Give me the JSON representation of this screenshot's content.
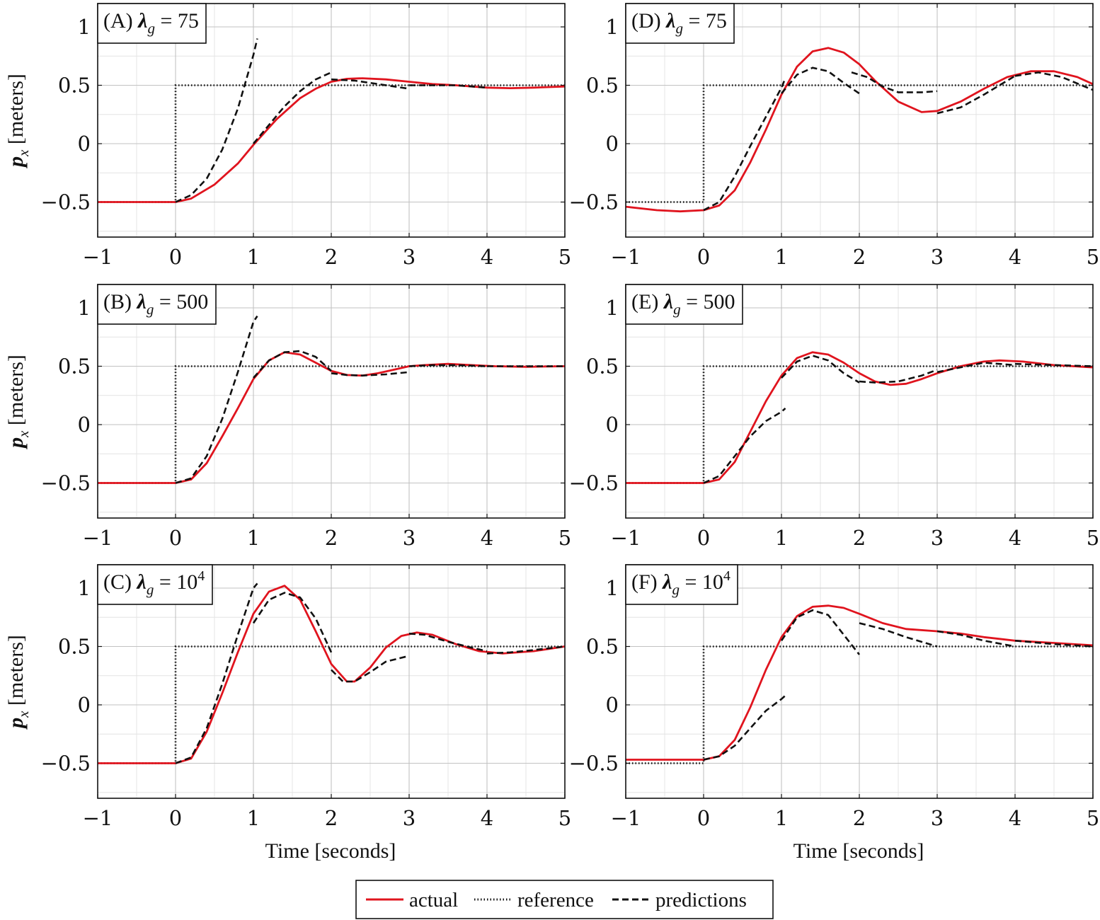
{
  "chart_data": {
    "type": "line",
    "xlabel": "Time [seconds]",
    "ylabel": "p_x [meters]",
    "ylabel_main": "p",
    "ylabel_sub": "x",
    "ylabel_unit": " [meters]",
    "xlim": [
      -1,
      5
    ],
    "ylim": [
      -0.8,
      1.2
    ],
    "x_ticks": [
      -1,
      0,
      1,
      2,
      3,
      4,
      5
    ],
    "x_tick_labels": [
      "−1",
      "0",
      "1",
      "2",
      "3",
      "4",
      "5"
    ],
    "y_ticks": [
      -0.5,
      0,
      0.5,
      1
    ],
    "y_tick_labels": [
      "−0.5",
      "0",
      "0.5",
      "1"
    ],
    "grid": true,
    "legend_position": "bottom-center",
    "legend": [
      {
        "name": "actual",
        "style": "solid",
        "color": "#e0141e"
      },
      {
        "name": "reference",
        "style": "dotted",
        "color": "#111111"
      },
      {
        "name": "predictions",
        "style": "dashed",
        "color": "#111111"
      }
    ],
    "reference": {
      "x": [
        -1,
        0,
        0,
        5
      ],
      "y": [
        -0.5,
        -0.5,
        0.5,
        0.5
      ]
    },
    "panels": [
      {
        "label_prefix": "(A) ",
        "lambda_value": "= 75",
        "lambda_exp": "",
        "actual": {
          "x": [
            -1,
            0,
            0.2,
            0.5,
            0.8,
            1.0,
            1.3,
            1.6,
            1.8,
            2.0,
            2.2,
            2.4,
            2.7,
            3.0,
            3.3,
            3.6,
            4.0,
            4.3,
            4.6,
            5.0
          ],
          "y": [
            -0.5,
            -0.5,
            -0.47,
            -0.35,
            -0.17,
            -0.01,
            0.21,
            0.39,
            0.47,
            0.53,
            0.555,
            0.56,
            0.55,
            0.53,
            0.51,
            0.5,
            0.48,
            0.475,
            0.48,
            0.49
          ]
        },
        "predictions": [
          {
            "x": [
              0,
              0.2,
              0.4,
              0.6,
              0.8,
              1.0,
              1.05
            ],
            "y": [
              -0.5,
              -0.44,
              -0.3,
              -0.05,
              0.3,
              0.76,
              0.9
            ]
          },
          {
            "x": [
              1.0,
              1.2,
              1.4,
              1.6,
              1.8,
              2.0
            ],
            "y": [
              0.0,
              0.16,
              0.32,
              0.45,
              0.55,
              0.61
            ]
          },
          {
            "x": [
              2.0,
              2.3,
              2.6,
              3.0
            ],
            "y": [
              0.55,
              0.54,
              0.51,
              0.47
            ]
          },
          {
            "x": [
              3.0,
              3.3,
              3.6,
              4.0
            ],
            "y": [
              0.5,
              0.5,
              0.5,
              0.48
            ]
          }
        ]
      },
      {
        "label_prefix": "(B) ",
        "lambda_value": "= 500",
        "lambda_exp": "",
        "actual": {
          "x": [
            -1,
            0,
            0.2,
            0.4,
            0.6,
            0.8,
            1.0,
            1.2,
            1.4,
            1.6,
            1.8,
            2.0,
            2.2,
            2.4,
            2.6,
            2.8,
            3.0,
            3.2,
            3.5,
            3.8,
            4.1,
            4.5,
            5.0
          ],
          "y": [
            -0.5,
            -0.5,
            -0.47,
            -0.33,
            -0.1,
            0.14,
            0.39,
            0.55,
            0.62,
            0.6,
            0.53,
            0.46,
            0.425,
            0.42,
            0.44,
            0.47,
            0.5,
            0.51,
            0.52,
            0.51,
            0.5,
            0.495,
            0.5
          ]
        },
        "predictions": [
          {
            "x": [
              0,
              0.2,
              0.4,
              0.6,
              0.8,
              1.0,
              1.05
            ],
            "y": [
              -0.5,
              -0.46,
              -0.27,
              0.05,
              0.45,
              0.88,
              0.93
            ]
          },
          {
            "x": [
              1.0,
              1.2,
              1.4,
              1.6,
              1.8,
              2.0
            ],
            "y": [
              0.4,
              0.55,
              0.62,
              0.63,
              0.58,
              0.46
            ]
          },
          {
            "x": [
              2.0,
              2.2,
              2.4,
              2.7,
              3.0
            ],
            "y": [
              0.44,
              0.425,
              0.42,
              0.43,
              0.45
            ]
          },
          {
            "x": [
              3.0,
              3.3,
              3.6,
              4.0
            ],
            "y": [
              0.5,
              0.51,
              0.51,
              0.5
            ]
          },
          {
            "x": [
              4.0,
              4.5,
              5.0
            ],
            "y": [
              0.5,
              0.5,
              0.5
            ]
          }
        ]
      },
      {
        "label_prefix": "(C) ",
        "lambda_value": "= 10",
        "lambda_exp": "4",
        "actual": {
          "x": [
            -1,
            0,
            0.2,
            0.4,
            0.6,
            0.8,
            1.0,
            1.2,
            1.4,
            1.6,
            1.8,
            2.0,
            2.2,
            2.3,
            2.5,
            2.7,
            2.9,
            3.1,
            3.3,
            3.6,
            3.9,
            4.2,
            4.6,
            5.0
          ],
          "y": [
            -0.5,
            -0.5,
            -0.46,
            -0.23,
            0.1,
            0.45,
            0.78,
            0.97,
            1.02,
            0.9,
            0.63,
            0.35,
            0.2,
            0.2,
            0.32,
            0.49,
            0.59,
            0.62,
            0.6,
            0.52,
            0.46,
            0.44,
            0.46,
            0.5
          ]
        },
        "predictions": [
          {
            "x": [
              0,
              0.2,
              0.4,
              0.6,
              0.8,
              1.0,
              1.05
            ],
            "y": [
              -0.5,
              -0.45,
              -0.2,
              0.18,
              0.6,
              1.0,
              1.04
            ]
          },
          {
            "x": [
              1.0,
              1.2,
              1.4,
              1.6,
              1.8,
              2.0
            ],
            "y": [
              0.7,
              0.9,
              0.96,
              0.92,
              0.74,
              0.45
            ]
          },
          {
            "x": [
              2.0,
              2.15,
              2.3,
              2.5,
              2.7,
              3.0
            ],
            "y": [
              0.3,
              0.2,
              0.2,
              0.28,
              0.37,
              0.42
            ]
          },
          {
            "x": [
              3.0,
              3.2,
              3.5,
              3.8,
              4.0
            ],
            "y": [
              0.61,
              0.6,
              0.54,
              0.49,
              0.46
            ]
          },
          {
            "x": [
              4.0,
              4.3,
              4.6,
              5.0
            ],
            "y": [
              0.44,
              0.45,
              0.47,
              0.5
            ]
          }
        ]
      },
      {
        "label_prefix": "(D) ",
        "lambda_value": "= 75",
        "lambda_exp": "",
        "actual": {
          "x": [
            -1,
            -0.6,
            -0.3,
            0,
            0.2,
            0.4,
            0.6,
            0.8,
            1.0,
            1.2,
            1.4,
            1.6,
            1.8,
            2.0,
            2.2,
            2.5,
            2.8,
            3.0,
            3.3,
            3.6,
            3.9,
            4.2,
            4.5,
            4.8,
            5.0
          ],
          "y": [
            -0.54,
            -0.57,
            -0.58,
            -0.57,
            -0.53,
            -0.4,
            -0.16,
            0.12,
            0.42,
            0.66,
            0.79,
            0.82,
            0.78,
            0.68,
            0.54,
            0.36,
            0.27,
            0.28,
            0.36,
            0.47,
            0.57,
            0.62,
            0.62,
            0.57,
            0.51
          ]
        },
        "predictions": [
          {
            "x": [
              0,
              0.2,
              0.4,
              0.6,
              0.8,
              1.0,
              1.05
            ],
            "y": [
              -0.57,
              -0.5,
              -0.28,
              -0.02,
              0.23,
              0.48,
              0.56
            ]
          },
          {
            "x": [
              1.0,
              1.2,
              1.4,
              1.6,
              1.8,
              2.0
            ],
            "y": [
              0.43,
              0.59,
              0.65,
              0.62,
              0.52,
              0.43
            ]
          },
          {
            "x": [
              1.9,
              2.1,
              2.3,
              2.5,
              2.8,
              3.0
            ],
            "y": [
              0.61,
              0.57,
              0.49,
              0.44,
              0.44,
              0.45
            ]
          },
          {
            "x": [
              3.0,
              3.3,
              3.6,
              3.8,
              4.0
            ],
            "y": [
              0.26,
              0.31,
              0.42,
              0.5,
              0.58
            ]
          },
          {
            "x": [
              4.0,
              4.3,
              4.6,
              5.0
            ],
            "y": [
              0.58,
              0.61,
              0.57,
              0.46
            ]
          }
        ]
      },
      {
        "label_prefix": "(E) ",
        "lambda_value": "= 500",
        "lambda_exp": "",
        "actual": {
          "x": [
            -1,
            0,
            0.2,
            0.4,
            0.6,
            0.8,
            1.0,
            1.2,
            1.4,
            1.6,
            1.8,
            2.0,
            2.2,
            2.4,
            2.6,
            2.8,
            3.0,
            3.3,
            3.6,
            3.8,
            4.1,
            4.5,
            5.0
          ],
          "y": [
            -0.5,
            -0.5,
            -0.47,
            -0.32,
            -0.06,
            0.2,
            0.42,
            0.57,
            0.62,
            0.6,
            0.53,
            0.44,
            0.37,
            0.34,
            0.35,
            0.39,
            0.44,
            0.5,
            0.54,
            0.55,
            0.54,
            0.51,
            0.49
          ]
        },
        "predictions": [
          {
            "x": [
              0,
              0.2,
              0.4,
              0.6,
              0.8,
              1.0,
              1.05
            ],
            "y": [
              -0.5,
              -0.44,
              -0.27,
              -0.1,
              0.03,
              0.11,
              0.14
            ]
          },
          {
            "x": [
              1.0,
              1.2,
              1.4,
              1.6,
              1.8,
              2.0
            ],
            "y": [
              0.4,
              0.54,
              0.59,
              0.55,
              0.44,
              0.36
            ]
          },
          {
            "x": [
              2.0,
              2.2,
              2.5,
              2.8,
              3.0
            ],
            "y": [
              0.37,
              0.36,
              0.37,
              0.42,
              0.47
            ]
          },
          {
            "x": [
              3.0,
              3.3,
              3.6,
              4.0
            ],
            "y": [
              0.45,
              0.49,
              0.53,
              0.51
            ]
          },
          {
            "x": [
              4.0,
              4.5,
              5.0
            ],
            "y": [
              0.52,
              0.51,
              0.5
            ]
          }
        ]
      },
      {
        "label_prefix": "(F) ",
        "lambda_value": "= 10",
        "lambda_exp": "4",
        "actual": {
          "x": [
            -1,
            0,
            0.2,
            0.4,
            0.6,
            0.8,
            1.0,
            1.2,
            1.4,
            1.6,
            1.8,
            2.0,
            2.3,
            2.6,
            3.0,
            3.3,
            3.6,
            4.0,
            4.5,
            5.0
          ],
          "y": [
            -0.47,
            -0.47,
            -0.44,
            -0.3,
            -0.02,
            0.3,
            0.58,
            0.76,
            0.84,
            0.85,
            0.83,
            0.78,
            0.7,
            0.65,
            0.63,
            0.61,
            0.58,
            0.55,
            0.53,
            0.51
          ]
        },
        "predictions": [
          {
            "x": [
              0,
              0.2,
              0.4,
              0.6,
              0.8,
              1.0,
              1.05
            ],
            "y": [
              -0.47,
              -0.44,
              -0.35,
              -0.2,
              -0.05,
              0.05,
              0.08
            ]
          },
          {
            "x": [
              1.0,
              1.2,
              1.4,
              1.6,
              1.8,
              2.0
            ],
            "y": [
              0.55,
              0.75,
              0.81,
              0.77,
              0.6,
              0.43
            ]
          },
          {
            "x": [
              2.0,
              2.3,
              2.6,
              3.0
            ],
            "y": [
              0.7,
              0.65,
              0.58,
              0.5
            ]
          },
          {
            "x": [
              3.0,
              3.3,
              3.6,
              4.0
            ],
            "y": [
              0.63,
              0.6,
              0.55,
              0.5
            ]
          },
          {
            "x": [
              4.0,
              4.5,
              5.0
            ],
            "y": [
              0.55,
              0.52,
              0.5
            ]
          }
        ]
      }
    ]
  }
}
